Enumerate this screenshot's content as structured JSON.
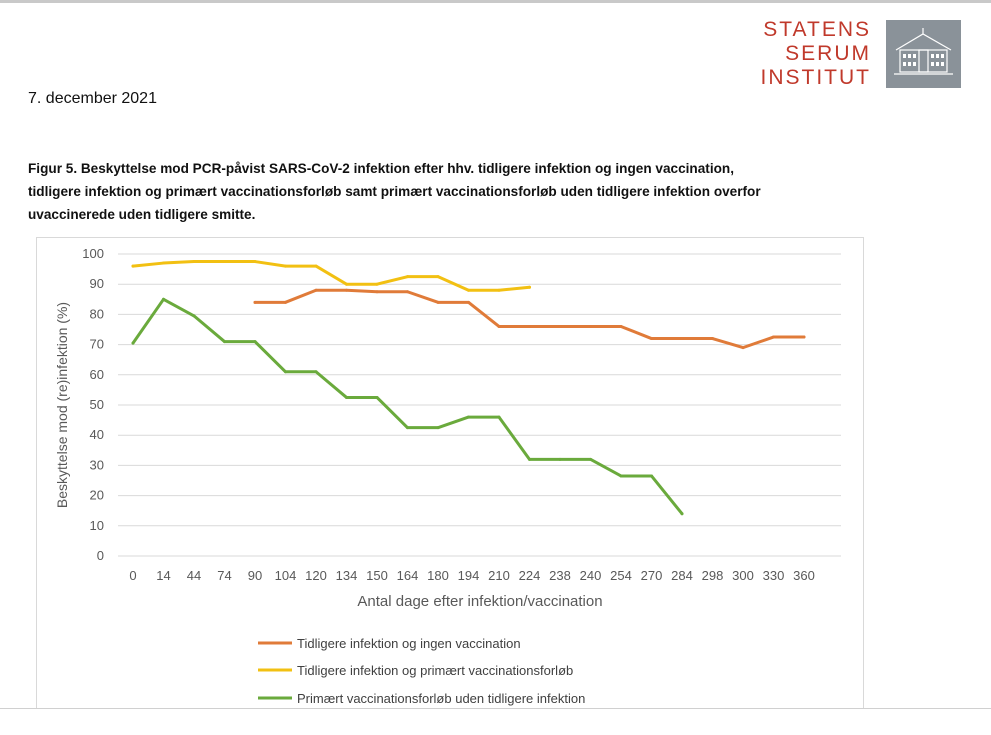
{
  "header": {
    "date": "7. december 2021",
    "logo": {
      "lines": [
        "STATENS",
        "SERUM",
        "INSTITUT"
      ],
      "color": "#c0392b",
      "icon": "building-icon"
    }
  },
  "figure": {
    "title_line1": "Figur 5. Beskyttelse mod PCR-påvist SARS-CoV-2 infektion efter hhv. tidligere infektion og ingen vaccination,",
    "title_line2": "tidligere infektion og primært vaccinationsforløb samt primært vaccinationsforløb uden tidligere infektion overfor",
    "title_line3": "uvaccinerede uden tidligere smitte."
  },
  "chart_data": {
    "type": "line",
    "xlabel": "Antal dage efter infektion/vaccination",
    "ylabel": "Beskyttelse mod (re)infektion (%)",
    "ylim": [
      0,
      100
    ],
    "yticks": [
      0,
      10,
      20,
      30,
      40,
      50,
      60,
      70,
      80,
      90,
      100
    ],
    "grid": true,
    "legend_position": "bottom",
    "categories": [
      "0",
      "14",
      "44",
      "74",
      "90",
      "104",
      "120",
      "134",
      "150",
      "164",
      "180",
      "194",
      "210",
      "224",
      "238",
      "240",
      "254",
      "270",
      "284",
      "298",
      "300",
      "330",
      "360"
    ],
    "series": [
      {
        "name": "Tidligere infektion og ingen vaccination",
        "color": "#e07b39",
        "values": [
          null,
          null,
          null,
          null,
          84,
          84,
          88,
          88,
          87.5,
          87.5,
          84,
          84,
          76,
          76,
          76,
          76,
          76,
          72,
          72,
          72,
          69,
          72.5,
          72.5
        ]
      },
      {
        "name": "Tidligere infektion og primært vaccinationsforløb",
        "color": "#f2c012",
        "values": [
          96,
          97,
          97.5,
          97.5,
          97.5,
          96,
          96,
          90,
          90,
          92.5,
          92.5,
          88,
          88,
          89,
          null,
          null,
          null,
          null,
          null,
          null,
          null,
          null,
          null
        ]
      },
      {
        "name": "Primært vaccinationsforløb uden tidligere infektion",
        "color": "#6aaa3c",
        "values": [
          70.5,
          85,
          79.5,
          71,
          71,
          61,
          61,
          52.5,
          52.5,
          42.5,
          42.5,
          46,
          46,
          32,
          32,
          32,
          26.5,
          26.5,
          14,
          null,
          null,
          null,
          null
        ]
      }
    ]
  }
}
